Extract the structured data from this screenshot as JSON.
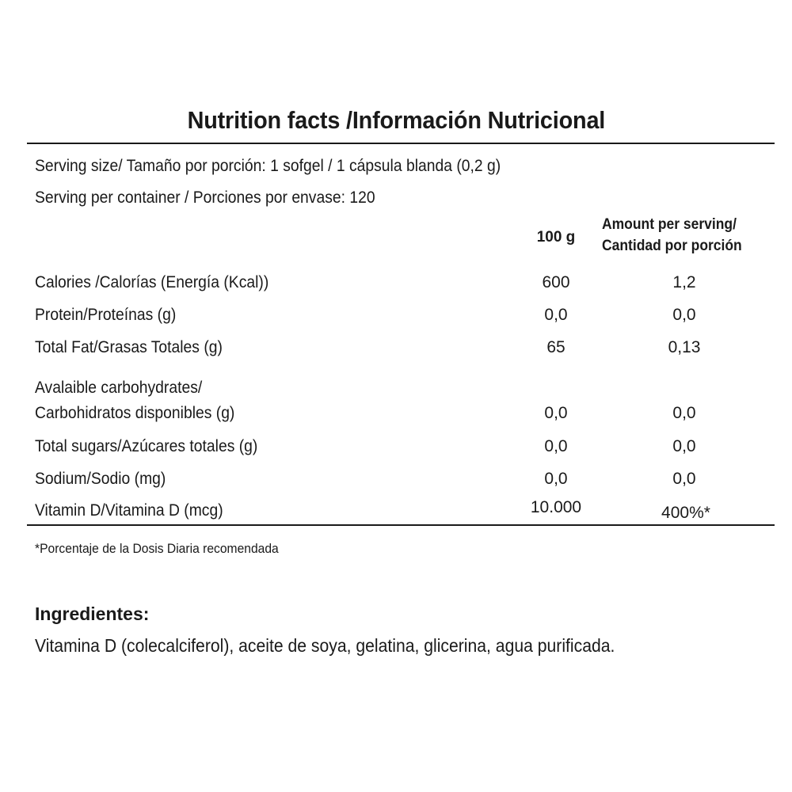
{
  "title": "Nutrition facts /Información Nutricional",
  "serving_size": "Serving size/ Tamaño por porción: 1 sofgel / 1 cápsula blanda  (0,2 g)",
  "servings_per_container": "Serving per container / Porciones por envase: 120",
  "columns": {
    "per_100g": "100 g",
    "per_serving_line1": "Amount per serving/",
    "per_serving_line2": "Cantidad por porción"
  },
  "rows": [
    {
      "label": "Calories /Calorías (Energía (Kcal))",
      "per_100g": "600",
      "per_serving": "1,2"
    },
    {
      "label": "Protein/Proteínas (g)",
      "per_100g": "0,0",
      "per_serving": "0,0"
    },
    {
      "label": "Total Fat/Grasas Totales (g)",
      "per_100g": "65",
      "per_serving": "0,13"
    },
    {
      "label_line1": "Avalaible carbohydrates/",
      "label": "Carbohidratos disponibles (g)",
      "per_100g": "0,0",
      "per_serving": "0,0"
    },
    {
      "label": "Total sugars/Azúcares totales (g)",
      "per_100g": "0,0",
      "per_serving": "0,0"
    },
    {
      "label": "Sodium/Sodio (mg)",
      "per_100g": "0,0",
      "per_serving": "0,0"
    },
    {
      "label": "Vitamin D/Vitamina D (mcg)",
      "per_100g": "10.000",
      "per_serving": "400%*"
    }
  ],
  "footnote": "*Porcentaje de la Dosis Diaria recomendada",
  "ingredients": {
    "heading": "Ingredientes:",
    "text": "Vitamina D (colecalciferol), aceite de soya, gelatina, glicerina, agua purificada."
  }
}
